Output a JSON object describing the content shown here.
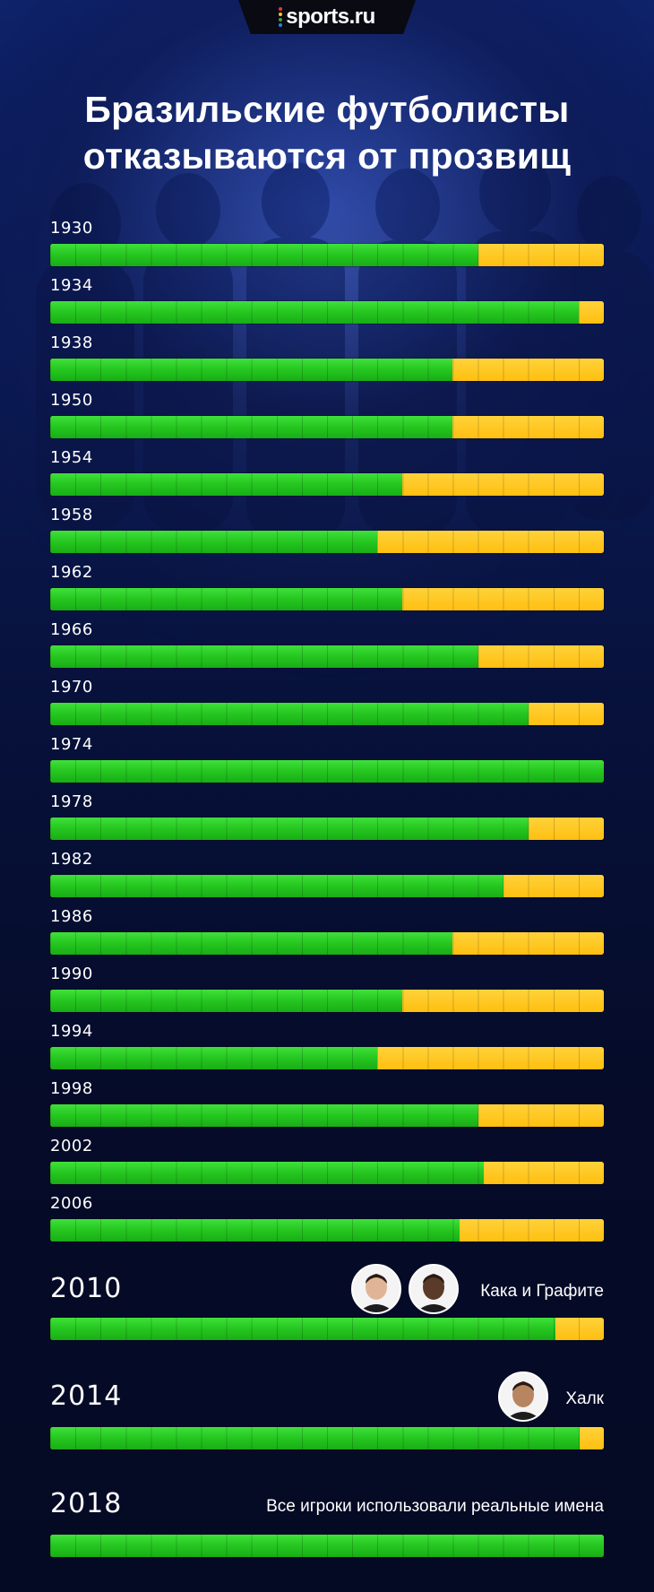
{
  "header": {
    "logo_text": "sports.ru",
    "logo_dot_colors": [
      "#e53935",
      "#fbc02d",
      "#43a047",
      "#1e88e5"
    ]
  },
  "title_line1": "Бразильские футболисты",
  "title_line2": "отказываются от прозвищ",
  "colors": {
    "green": "#25c61f",
    "yellow": "#ffc21a",
    "background": "#050a26"
  },
  "chart_data": {
    "type": "bar",
    "orientation": "horizontal-stacked",
    "segments_per_bar": 22,
    "categories": [
      "1930",
      "1934",
      "1938",
      "1950",
      "1954",
      "1958",
      "1962",
      "1966",
      "1970",
      "1974",
      "1978",
      "1982",
      "1986",
      "1990",
      "1994",
      "1998",
      "2002",
      "2006",
      "2010",
      "2014",
      "2018"
    ],
    "series": [
      {
        "color": "#25c61f",
        "values": [
          0.773,
          0.955,
          0.727,
          0.727,
          0.636,
          0.591,
          0.636,
          0.773,
          0.864,
          1.0,
          0.864,
          0.818,
          0.727,
          0.636,
          0.591,
          0.773,
          0.783,
          0.739,
          0.913,
          0.957,
          1.0
        ]
      },
      {
        "color": "#ffc21a",
        "values": [
          0.227,
          0.045,
          0.273,
          0.273,
          0.364,
          0.409,
          0.364,
          0.227,
          0.136,
          0.0,
          0.136,
          0.182,
          0.273,
          0.364,
          0.409,
          0.227,
          0.217,
          0.261,
          0.087,
          0.043,
          0.0
        ]
      }
    ],
    "annotations": {
      "2010": "Кака и Графите",
      "2014": "Халк",
      "2018": "Все игроки использовали реальные имена"
    }
  },
  "avatars": {
    "2010": [
      "kaka-avatar",
      "grafite-avatar"
    ],
    "2014": [
      "hulk-avatar"
    ]
  }
}
